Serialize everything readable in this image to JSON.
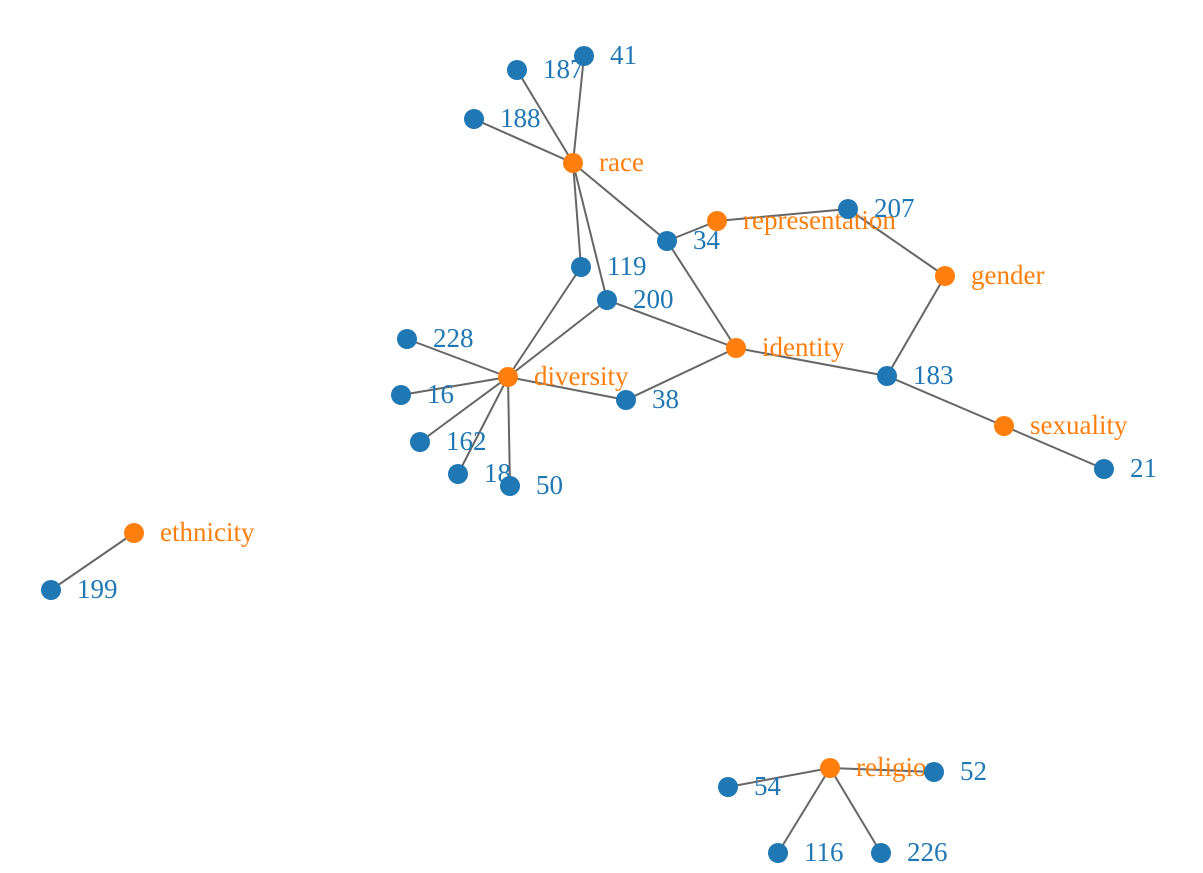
{
  "colors": {
    "term": "#ff7f0e",
    "document": "#1f77b4",
    "edge": "#666666"
  },
  "nodes": [
    {
      "id": "race",
      "label": "race",
      "type": "term"
    },
    {
      "id": "representation",
      "label": "representation",
      "type": "term"
    },
    {
      "id": "gender",
      "label": "gender",
      "type": "term"
    },
    {
      "id": "identity",
      "label": "identity",
      "type": "term"
    },
    {
      "id": "diversity",
      "label": "diversity",
      "type": "term"
    },
    {
      "id": "sexuality",
      "label": "sexuality",
      "type": "term"
    },
    {
      "id": "ethnicity",
      "label": "ethnicity",
      "type": "term"
    },
    {
      "id": "religion",
      "label": "religion",
      "type": "term"
    },
    {
      "id": "n41",
      "label": "41",
      "type": "document"
    },
    {
      "id": "n187",
      "label": "187",
      "type": "document"
    },
    {
      "id": "n188",
      "label": "188",
      "type": "document"
    },
    {
      "id": "n207",
      "label": "207",
      "type": "document"
    },
    {
      "id": "n34",
      "label": "34",
      "type": "document"
    },
    {
      "id": "n119",
      "label": "119",
      "type": "document"
    },
    {
      "id": "n200",
      "label": "200",
      "type": "document"
    },
    {
      "id": "n228",
      "label": "228",
      "type": "document"
    },
    {
      "id": "n16",
      "label": "16",
      "type": "document"
    },
    {
      "id": "n38",
      "label": "38",
      "type": "document"
    },
    {
      "id": "n162",
      "label": "162",
      "type": "document"
    },
    {
      "id": "n18",
      "label": "18",
      "type": "document"
    },
    {
      "id": "n50",
      "label": "50",
      "type": "document"
    },
    {
      "id": "n183",
      "label": "183",
      "type": "document"
    },
    {
      "id": "n21",
      "label": "21",
      "type": "document"
    },
    {
      "id": "n199",
      "label": "199",
      "type": "document"
    },
    {
      "id": "n54",
      "label": "54",
      "type": "document"
    },
    {
      "id": "n52",
      "label": "52",
      "type": "document"
    },
    {
      "id": "n116",
      "label": "116",
      "type": "document"
    },
    {
      "id": "n226",
      "label": "226",
      "type": "document"
    }
  ],
  "edges": [
    [
      "race",
      "n41"
    ],
    [
      "race",
      "n187"
    ],
    [
      "race",
      "n188"
    ],
    [
      "race",
      "n34"
    ],
    [
      "race",
      "n119"
    ],
    [
      "race",
      "n200"
    ],
    [
      "representation",
      "n34"
    ],
    [
      "representation",
      "n207"
    ],
    [
      "gender",
      "n207"
    ],
    [
      "gender",
      "n183"
    ],
    [
      "identity",
      "n34"
    ],
    [
      "identity",
      "n200"
    ],
    [
      "identity",
      "n38"
    ],
    [
      "identity",
      "n183"
    ],
    [
      "diversity",
      "n119"
    ],
    [
      "diversity",
      "n200"
    ],
    [
      "diversity",
      "n228"
    ],
    [
      "diversity",
      "n16"
    ],
    [
      "diversity",
      "n38"
    ],
    [
      "diversity",
      "n162"
    ],
    [
      "diversity",
      "n18"
    ],
    [
      "diversity",
      "n50"
    ],
    [
      "sexuality",
      "n183"
    ],
    [
      "sexuality",
      "n21"
    ],
    [
      "ethnicity",
      "n199"
    ],
    [
      "religion",
      "n54"
    ],
    [
      "religion",
      "n52"
    ],
    [
      "religion",
      "n116"
    ],
    [
      "religion",
      "n226"
    ]
  ]
}
